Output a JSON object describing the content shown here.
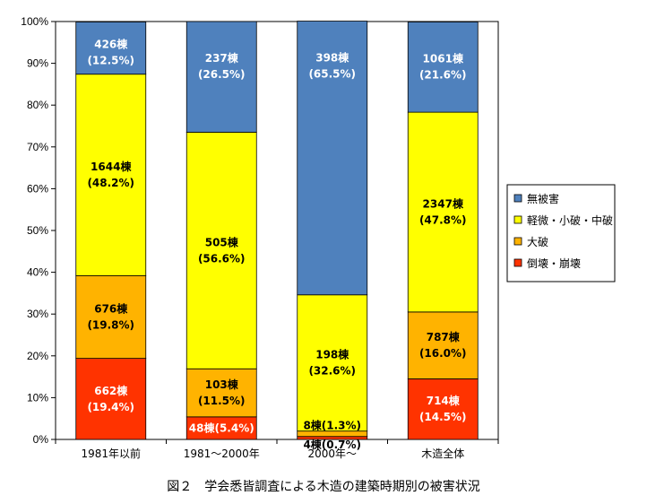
{
  "caption": "図２　学会悉皆調査による木造の建築時期別の被害状況",
  "chart_data": {
    "type": "bar",
    "stacked": true,
    "percent_stacked": true,
    "categories": [
      "1981年以前",
      "1981～2000年",
      "2000年～",
      "木造全体"
    ],
    "ylim": [
      0,
      100
    ],
    "yticks": [
      "0%",
      "10%",
      "20%",
      "30%",
      "40%",
      "50%",
      "60%",
      "70%",
      "80%",
      "90%",
      "100%"
    ],
    "legend_position": "right",
    "series": [
      {
        "name": "倒壊・崩壊",
        "color": "#ff3300",
        "values": [
          19.4,
          5.4,
          0.7,
          14.5
        ],
        "labels": [
          [
            "662棟",
            "(19.4%)"
          ],
          [
            "48棟(5.4%)"
          ],
          [
            "4棟(0.7%)"
          ],
          [
            "714棟",
            "(14.5%)"
          ]
        ]
      },
      {
        "name": "大破",
        "color": "#ffb300",
        "values": [
          19.8,
          11.5,
          1.3,
          16.0
        ],
        "labels": [
          [
            "676棟",
            "(19.8%)"
          ],
          [
            "103棟",
            "(11.5%)"
          ],
          [
            "8棟(1.3%)"
          ],
          [
            "787棟",
            "(16.0%)"
          ]
        ]
      },
      {
        "name": "軽微・小破・中破",
        "color": "#ffff00",
        "values": [
          48.2,
          56.6,
          32.6,
          47.8
        ],
        "labels": [
          [
            "1644棟",
            "(48.2%)"
          ],
          [
            "505棟",
            "(56.6%)"
          ],
          [
            "198棟",
            "(32.6%)"
          ],
          [
            "2347棟",
            "(47.8%)"
          ]
        ]
      },
      {
        "name": "無被害",
        "color": "#4f81bd",
        "values": [
          12.5,
          26.5,
          65.5,
          21.6
        ],
        "labels": [
          [
            "426棟",
            "(12.5%)"
          ],
          [
            "237棟",
            "(26.5%)"
          ],
          [
            "398棟",
            "(65.5%)"
          ],
          [
            "1061棟",
            "(21.6%)"
          ]
        ]
      }
    ],
    "legend_order": [
      "無被害",
      "軽微・小破・中破",
      "大破",
      "倒壊・崩壊"
    ],
    "grid": false
  }
}
